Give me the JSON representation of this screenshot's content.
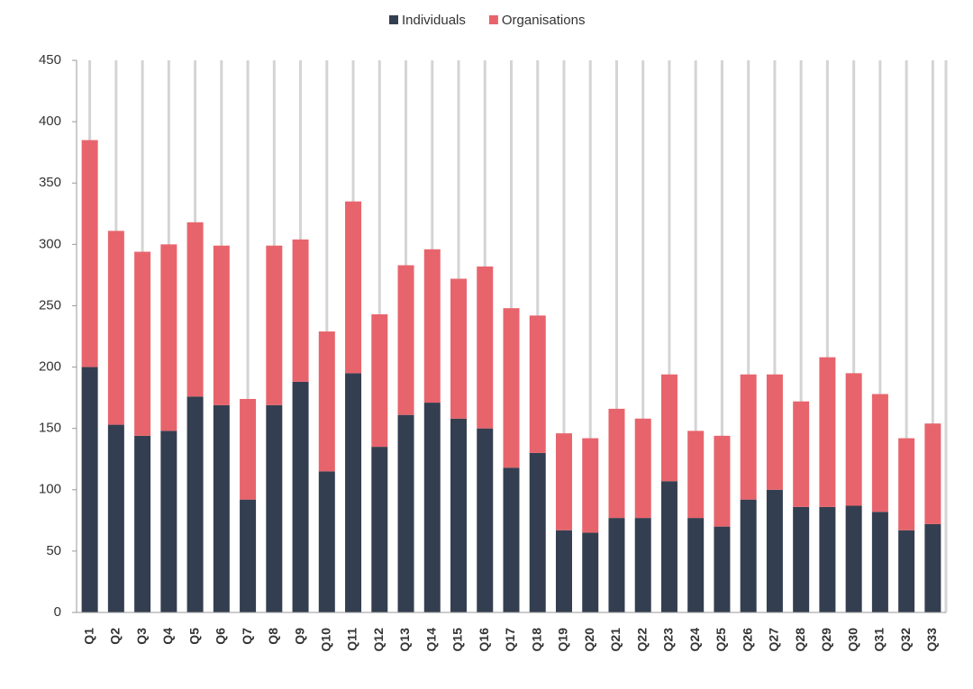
{
  "chart_data": {
    "type": "stacked-bar",
    "categories": [
      "Q1",
      "Q2",
      "Q3",
      "Q4",
      "Q5",
      "Q6",
      "Q7",
      "Q8",
      "Q9",
      "Q10",
      "Q11",
      "Q12",
      "Q13",
      "Q14",
      "Q15",
      "Q16",
      "Q17",
      "Q18",
      "Q19",
      "Q20",
      "Q21",
      "Q22",
      "Q23",
      "Q24",
      "Q25",
      "Q26",
      "Q27",
      "Q28",
      "Q29",
      "Q30",
      "Q31",
      "Q32",
      "Q33"
    ],
    "series": [
      {
        "name": "Individuals",
        "color": "#333f50",
        "values": [
          200,
          153,
          144,
          148,
          176,
          169,
          92,
          169,
          188,
          115,
          195,
          135,
          161,
          171,
          158,
          150,
          118,
          130,
          67,
          65,
          77,
          77,
          107,
          77,
          70,
          92,
          100,
          86,
          86,
          87,
          82,
          67,
          72
        ]
      },
      {
        "name": "Organisations",
        "color": "#e8646c",
        "values": [
          185,
          158,
          150,
          152,
          142,
          130,
          82,
          130,
          116,
          114,
          140,
          108,
          122,
          125,
          114,
          132,
          130,
          112,
          79,
          77,
          89,
          81,
          87,
          71,
          74,
          102,
          94,
          86,
          122,
          108,
          96,
          75,
          82
        ]
      }
    ],
    "ylim": [
      0,
      450
    ],
    "yticks": [
      0,
      50,
      100,
      150,
      200,
      250,
      300,
      350,
      400,
      450
    ],
    "grid": true,
    "legend": "top"
  }
}
